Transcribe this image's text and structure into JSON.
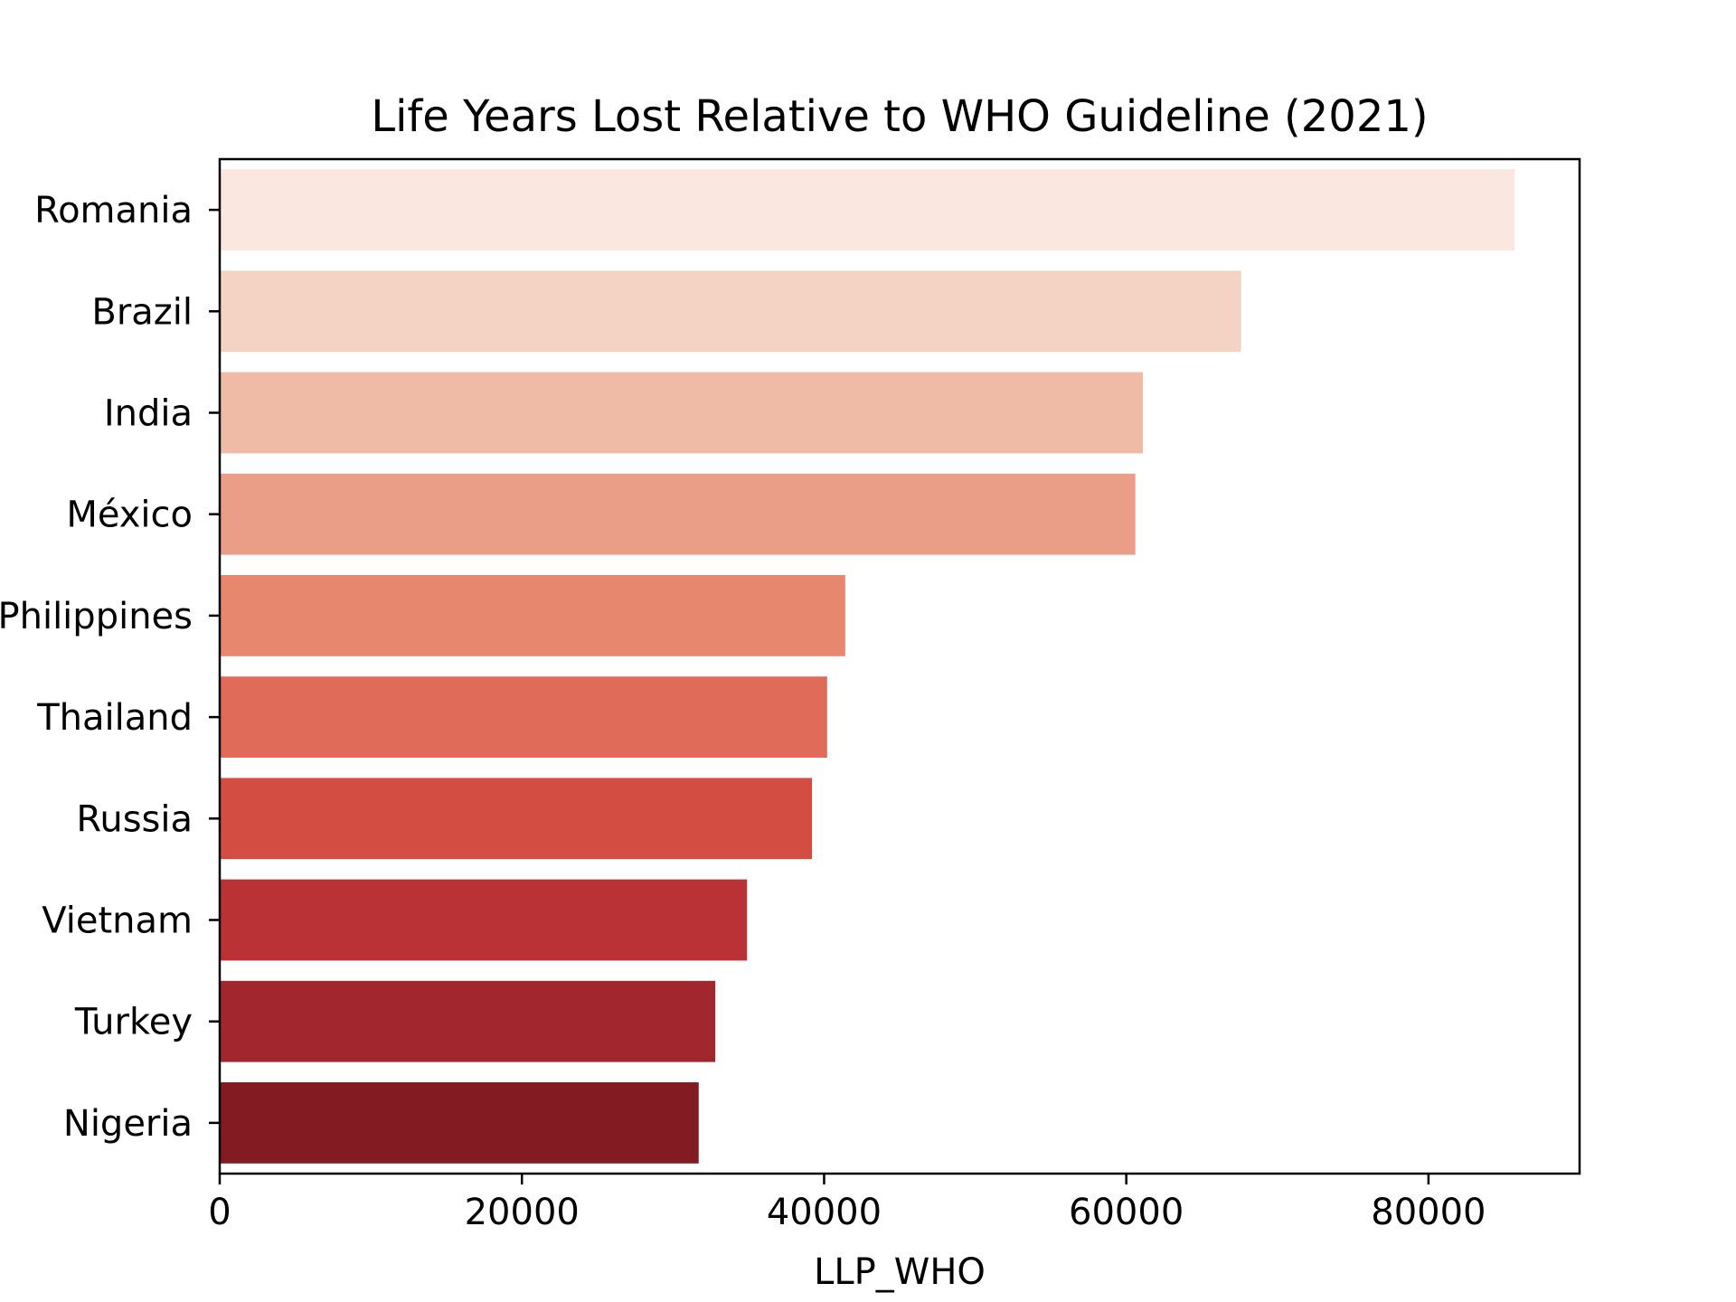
{
  "chart_data": {
    "type": "bar",
    "orientation": "horizontal",
    "title": "Life Years Lost Relative to WHO Guideline (2021)",
    "xlabel": "LLP_WHO",
    "ylabel": "",
    "xlim": [
      0,
      90000
    ],
    "xticks": [
      0,
      20000,
      40000,
      60000,
      80000
    ],
    "xtick_labels": [
      "0",
      "20000",
      "40000",
      "60000",
      "80000"
    ],
    "grid": false,
    "categories": [
      "Romania",
      "Brazil",
      "India",
      "México",
      "Philippines",
      "Thailand",
      "Russia",
      "Vietnam",
      "Turkey",
      "Nigeria"
    ],
    "values": [
      85700,
      67600,
      61100,
      60600,
      41400,
      40200,
      39200,
      34900,
      32800,
      31700
    ],
    "colors": [
      "#fae7df",
      "#f4d3c5",
      "#f0bba6",
      "#ea9e87",
      "#e7876d",
      "#e06b59",
      "#d34d43",
      "#ba3236",
      "#a1262d",
      "#831b23"
    ]
  }
}
